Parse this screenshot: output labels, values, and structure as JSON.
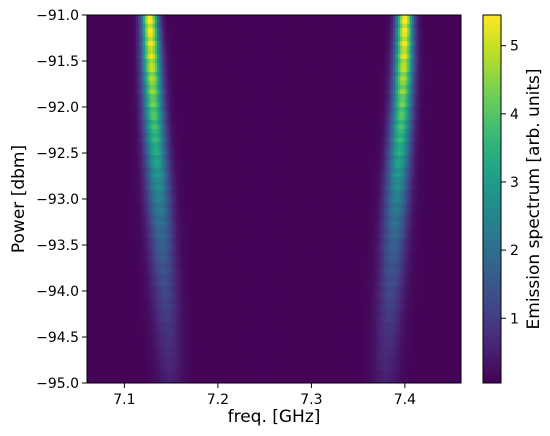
{
  "chart_data": {
    "type": "heatmap",
    "title": "",
    "xlabel": "freq. [GHz]",
    "ylabel": "Power [dbm]",
    "xlim": [
      7.06,
      7.46
    ],
    "ylim": [
      -95.0,
      -91.0
    ],
    "x_ticks": [
      7.1,
      7.2,
      7.3,
      7.4
    ],
    "x_tick_labels": [
      "7.1",
      "7.2",
      "7.3",
      "7.4"
    ],
    "y_ticks": [
      -91.0,
      -91.5,
      -92.0,
      -92.5,
      -93.0,
      -93.5,
      -94.0,
      -94.5,
      -95.0
    ],
    "y_tick_labels": [
      "−91.0",
      "−91.5",
      "−92.0",
      "−92.5",
      "−93.0",
      "−93.5",
      "−94.0",
      "−94.5",
      "−95.0"
    ],
    "colorbar": {
      "label": "Emission spectrum [arb. units]",
      "range": [
        0.05,
        5.45
      ],
      "ticks": [
        1,
        2,
        3,
        4,
        5
      ],
      "tick_labels": [
        "1",
        "2",
        "3",
        "4",
        "5"
      ],
      "colormap": "viridis"
    },
    "background_level": 0.1,
    "peaks": [
      {
        "power": [
          -91.0,
          -91.5,
          -92.0,
          -92.5,
          -93.0,
          -93.5,
          -94.0,
          -94.5,
          -95.0
        ],
        "center": [
          7.127,
          7.129,
          7.131,
          7.134,
          7.137,
          7.14,
          7.143,
          7.146,
          7.149
        ],
        "width": [
          0.006,
          0.007,
          0.0075,
          0.0082,
          0.009,
          0.0095,
          0.0098,
          0.01,
          0.01
        ],
        "amplitude": [
          5.4,
          4.9,
          4.0,
          3.2,
          2.3,
          1.6,
          1.1,
          0.7,
          0.4
        ]
      },
      {
        "power": [
          -91.0,
          -91.5,
          -92.0,
          -92.5,
          -93.0,
          -93.5,
          -94.0,
          -94.5,
          -95.0
        ],
        "center": [
          7.4,
          7.399,
          7.397,
          7.394,
          7.391,
          7.388,
          7.385,
          7.382,
          7.379
        ],
        "width": [
          0.006,
          0.007,
          0.0075,
          0.0082,
          0.009,
          0.0095,
          0.0098,
          0.01,
          0.01
        ],
        "amplitude": [
          5.4,
          4.9,
          4.0,
          3.2,
          2.3,
          1.6,
          1.1,
          0.7,
          0.4
        ]
      }
    ]
  }
}
